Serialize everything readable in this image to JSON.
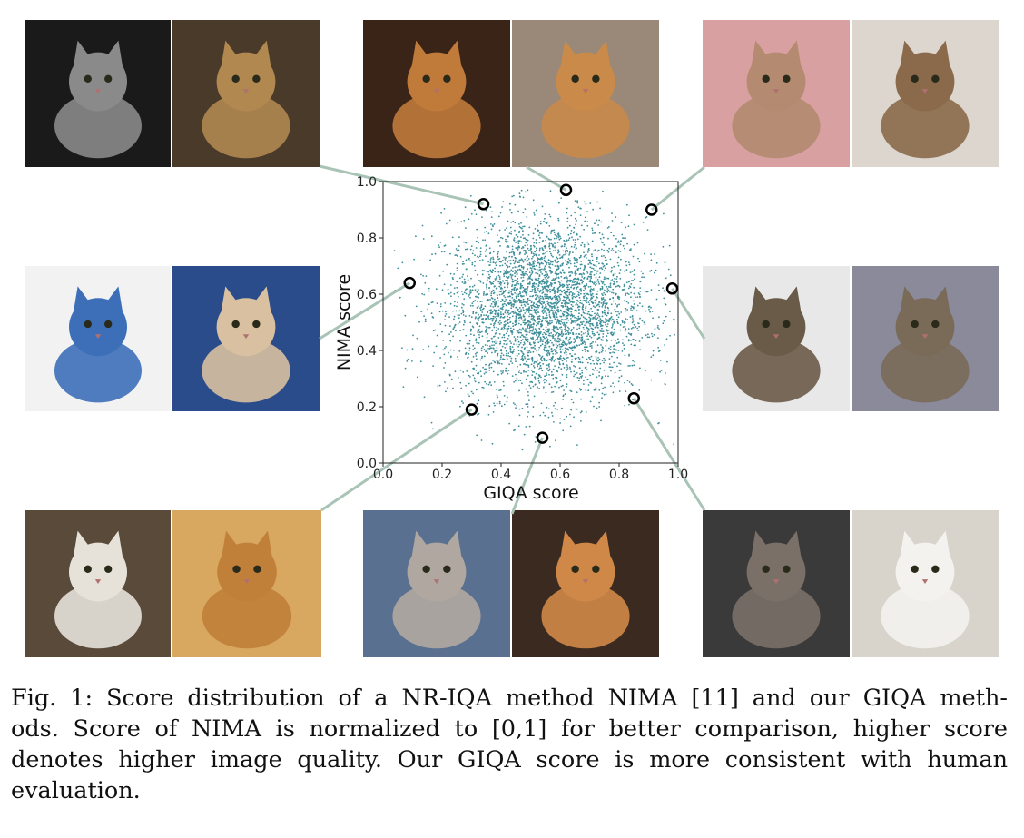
{
  "figure": {
    "caption": "Fig. 1: Score distribution of a NR-IQA method NIMA [11] and our GIQA methods. Score of NIMA is normalized to [0,1] for better comparison, higher score denotes higher image quality. Our GIQA score is more consistent with human evaluation.",
    "caption_lines": [
      "Fig. 1: Score distribution of a NR-IQA method NIMA [11] and our GIQA meth-",
      "ods. Score of NIMA is normalized to [0,1] for better comparison, higher score",
      "denotes higher image quality. Our GIQA score is more consistent with human",
      "evaluation."
    ]
  },
  "colors": {
    "scatter_point": "#3f8f9a",
    "connector_line": "#a9c4b6",
    "highlight_ring": "#000000"
  },
  "chart_data": {
    "type": "scatter",
    "xlabel": "GIQA score",
    "ylabel": "NIMA score",
    "xlim": [
      0.0,
      1.0
    ],
    "ylim": [
      0.0,
      1.0
    ],
    "xticks": [
      "0.0",
      "0.2",
      "0.4",
      "0.6",
      "0.8",
      "1.0"
    ],
    "yticks": [
      "0.0",
      "0.2",
      "0.4",
      "0.6",
      "0.8",
      "1.0"
    ],
    "grid": false,
    "distribution": {
      "n_points": 4000,
      "center": [
        0.55,
        0.55
      ],
      "spread": [
        0.17,
        0.16
      ]
    },
    "highlighted_points": [
      {
        "name": "top-left-pair",
        "x": 0.34,
        "y": 0.92
      },
      {
        "name": "top-center-pair",
        "x": 0.62,
        "y": 0.97
      },
      {
        "name": "top-right-pair",
        "x": 0.91,
        "y": 0.9
      },
      {
        "name": "mid-left-pair",
        "x": 0.09,
        "y": 0.64
      },
      {
        "name": "mid-right-pair",
        "x": 0.98,
        "y": 0.62
      },
      {
        "name": "bottom-left-pair",
        "x": 0.3,
        "y": 0.19
      },
      {
        "name": "bottom-center-pair",
        "x": 0.54,
        "y": 0.09
      },
      {
        "name": "bottom-right-pair",
        "x": 0.85,
        "y": 0.23
      }
    ]
  },
  "photos": [
    {
      "name": "cat-photo-bw-framed",
      "desc_icon": "cat-image",
      "bg": "#1a1a1a",
      "fg": "#8a8a8a"
    },
    {
      "name": "cat-photo-on-piano",
      "desc_icon": "cat-image",
      "bg": "#4a3a2a",
      "fg": "#b08850"
    },
    {
      "name": "cat-photo-orange-book",
      "desc_icon": "cat-image",
      "bg": "#3a2418",
      "fg": "#c07a3a"
    },
    {
      "name": "cat-photo-orange-sitting",
      "desc_icon": "cat-image",
      "bg": "#9a8878",
      "fg": "#c98a4a"
    },
    {
      "name": "cat-photo-persian-pink",
      "desc_icon": "cat-image",
      "bg": "#d8a0a0",
      "fg": "#b48a70"
    },
    {
      "name": "cat-photo-tabby-face",
      "desc_icon": "cat-image",
      "bg": "#dcd6ce",
      "fg": "#8a6a4a"
    },
    {
      "name": "cat-photo-in-bowl",
      "desc_icon": "cat-image",
      "bg": "#f2f2f2",
      "fg": "#3c6fb8"
    },
    {
      "name": "cat-photo-blue-fabric",
      "desc_icon": "cat-image",
      "bg": "#2a4c8a",
      "fg": "#d8c0a0"
    },
    {
      "name": "cat-photo-longhair-tabby",
      "desc_icon": "cat-image",
      "bg": "#e8e8e8",
      "fg": "#6a5a48"
    },
    {
      "name": "cat-photo-tabby-sitting",
      "desc_icon": "cat-image",
      "bg": "#8a8a9a",
      "fg": "#7a6a58"
    },
    {
      "name": "cat-photo-white-fluffy",
      "desc_icon": "cat-image",
      "bg": "#5a4a3a",
      "fg": "#e6e2da"
    },
    {
      "name": "cat-photo-orange-closeup",
      "desc_icon": "cat-image",
      "bg": "#d8a860",
      "fg": "#c0803a"
    },
    {
      "name": "cat-photo-gray-in-bed",
      "desc_icon": "cat-image",
      "bg": "#5a7090",
      "fg": "#b0a8a0"
    },
    {
      "name": "cat-photo-orange-in-bed",
      "desc_icon": "cat-image",
      "bg": "#3a2a20",
      "fg": "#d08848"
    },
    {
      "name": "cat-photo-tabby-lying",
      "desc_icon": "cat-image",
      "bg": "#3a3a3a",
      "fg": "#7a7068"
    },
    {
      "name": "cat-photo-white-kitten",
      "desc_icon": "cat-image",
      "bg": "#d8d4cc",
      "fg": "#f4f2ee"
    }
  ]
}
